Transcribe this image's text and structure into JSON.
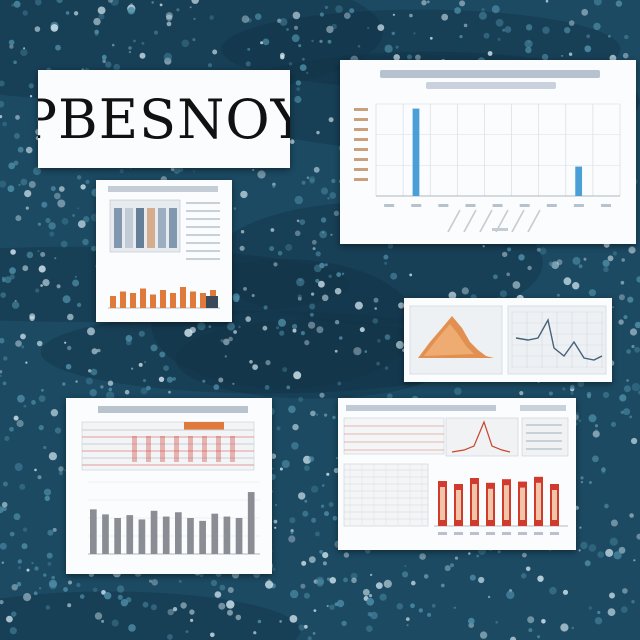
{
  "poster": {
    "title": "PBESNOY"
  },
  "colors": {
    "background": "#1c4a63",
    "bubble_light": "#cfe3ec",
    "bubble_mid": "#4f8fa8",
    "chart_blue": "#4a9fd6",
    "chart_orange": "#e07a3a",
    "chart_gray": "#8a8e94",
    "chart_red": "#d23a2e"
  },
  "cards": {
    "top_right_chart": {
      "bars": [
        0,
        0.95,
        0,
        0,
        0,
        0,
        0,
        0.32,
        0
      ]
    },
    "bottom_left_chart": {
      "bars": [
        0.62,
        0.55,
        0.5,
        0.54,
        0.48,
        0.6,
        0.52,
        0.58,
        0.5,
        0.46,
        0.56,
        0.52,
        0.5,
        0.86
      ]
    },
    "small_left_chart": {
      "bars": [
        0.4,
        0.55,
        0.5,
        0.65,
        0.45,
        0.6,
        0.5,
        0.7,
        0.55,
        0.5,
        0.6
      ]
    },
    "bottom_right_chart": {
      "bars": [
        0.75,
        0.7,
        0.8,
        0.72,
        0.78,
        0.74,
        0.82,
        0.7
      ]
    }
  }
}
